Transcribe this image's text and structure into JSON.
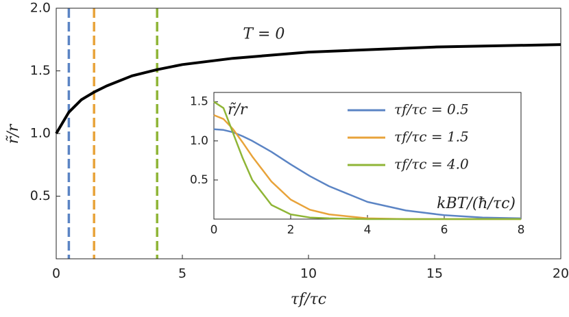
{
  "chart_data": [
    {
      "type": "line",
      "x": [
        0,
        0.5,
        1,
        1.5,
        2,
        3,
        4,
        5,
        7,
        10,
        15,
        20
      ],
      "series": [
        {
          "color": "#000000",
          "values": [
            1.0,
            1.17,
            1.27,
            1.33,
            1.38,
            1.46,
            1.51,
            1.55,
            1.6,
            1.65,
            1.69,
            1.71
          ]
        }
      ],
      "vlines": [
        {
          "x": 0.5,
          "color": "#5b84c4"
        },
        {
          "x": 1.5,
          "color": "#e8a33a"
        },
        {
          "x": 4,
          "color": "#8fb536"
        }
      ],
      "annotation": "T = 0",
      "x_label": "τf/τc",
      "y_label": "r̃/r",
      "xlim": [
        0,
        20
      ],
      "ylim": [
        0,
        2
      ],
      "xticks": [
        0,
        5,
        10,
        15,
        20
      ],
      "yticks": [
        0.5,
        {
          "value": 1,
          "label": "1.0"
        },
        1.5,
        {
          "value": 2,
          "label": "2.0"
        }
      ]
    },
    {
      "type": "line",
      "x": [
        0,
        0.25,
        0.5,
        0.75,
        1,
        1.5,
        2,
        2.5,
        3,
        4,
        5,
        6,
        7,
        8
      ],
      "series": [
        {
          "name": "τf/τc = 0.5",
          "color": "#5b84c4",
          "values": [
            1.15,
            1.14,
            1.11,
            1.06,
            1.0,
            0.86,
            0.7,
            0.55,
            0.42,
            0.22,
            0.11,
            0.05,
            0.02,
            0.01
          ]
        },
        {
          "name": "τf/τc = 1.5",
          "color": "#e8a33a",
          "values": [
            1.33,
            1.28,
            1.15,
            0.98,
            0.8,
            0.48,
            0.25,
            0.12,
            0.06,
            0.01,
            0,
            0,
            0,
            0
          ]
        },
        {
          "name": "τf/τc = 4.0",
          "color": "#8fb536",
          "values": [
            1.5,
            1.42,
            1.1,
            0.78,
            0.5,
            0.18,
            0.06,
            0.02,
            0.01,
            0,
            0,
            0,
            0,
            0
          ]
        }
      ],
      "x_label": "kBT/(ħ/τc)",
      "y_label": "r̃/r",
      "legend": "upper right",
      "xlim": [
        0,
        8
      ],
      "ylim": [
        0,
        1.62
      ],
      "xticks": [
        0,
        2,
        4,
        6,
        8
      ],
      "yticks": [
        0.5,
        {
          "value": 1,
          "label": "1.0"
        },
        1.5
      ]
    }
  ]
}
